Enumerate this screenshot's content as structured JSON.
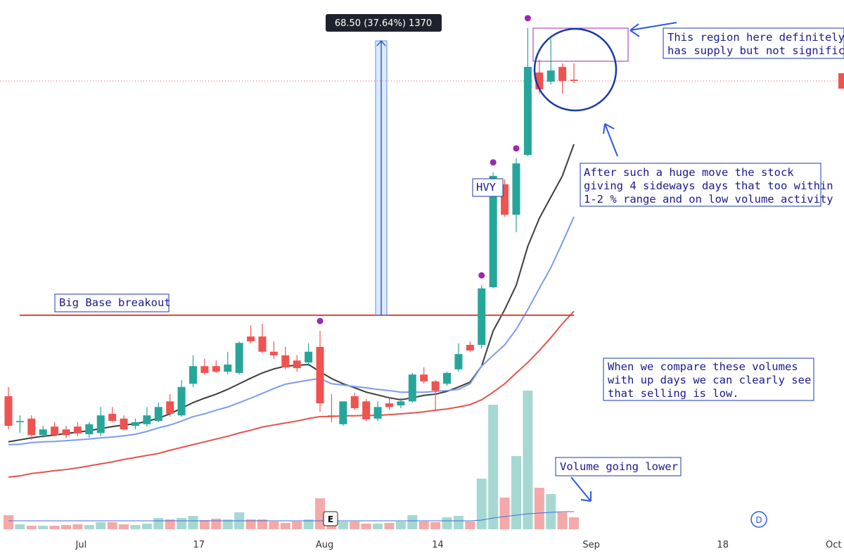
{
  "chart_data": {
    "type": "candlestick",
    "xlim": [
      -0.73,
      72.4
    ],
    "xticks": [
      {
        "value": 6.3,
        "label": "Jul"
      },
      {
        "value": 16.5,
        "label": "17"
      },
      {
        "value": 27.4,
        "label": "Aug"
      },
      {
        "value": 37.2,
        "label": "14"
      },
      {
        "value": 50.5,
        "label": "Sep"
      },
      {
        "value": 61.9,
        "label": "18"
      },
      {
        "value": 71.5,
        "label": "Oct"
      }
    ],
    "ylim": [
      121.9,
      260.7
    ],
    "y2lim": [
      0,
      100
    ],
    "up_color": "#26a69a",
    "down_color": "#ef5350",
    "volume_up_color": "#a6d8d3",
    "volume_down_color": "#f4a9a8",
    "candles": {
      "open": [
        161.8,
        155.3,
        156.2,
        152.1,
        154.2,
        153.5,
        154.2,
        152.3,
        152.6,
        157.4,
        156.2,
        154.4,
        154.8,
        155.6,
        160.5,
        157.0,
        164.9,
        169.3,
        169.3,
        167.9,
        167.6,
        176.7,
        176.7,
        172.9,
        172.0,
        170.7,
        170.2,
        174.1,
        157.0,
        154.8,
        161.8,
        160.5,
        156.2,
        160.0,
        159.5,
        160.5,
        167.2,
        165.5,
        164.9,
        168.5,
        174.6,
        174.6,
        189.0,
        214.7,
        207.1,
        222.0,
        242.6,
        240.3,
        244.0,
        240.8
      ],
      "high": [
        164.1,
        157.0,
        157.0,
        154.4,
        155.3,
        154.4,
        155.3,
        155.3,
        159.1,
        159.1,
        157.0,
        156.2,
        159.1,
        160.2,
        162.3,
        165.8,
        172.0,
        171.1,
        170.7,
        172.9,
        175.5,
        179.5,
        179.9,
        175.5,
        174.1,
        172.0,
        175.0,
        178.1,
        162.3,
        160.5,
        162.7,
        161.1,
        160.5,
        161.4,
        161.4,
        167.6,
        169.0,
        165.8,
        167.9,
        175.0,
        175.5,
        189.5,
        217.7,
        215.9,
        221.2,
        253.7,
        245.8,
        251.0,
        244.9,
        244.9
      ],
      "low": [
        153.5,
        152.6,
        150.9,
        151.4,
        151.8,
        151.4,
        151.8,
        151.4,
        151.8,
        155.3,
        153.2,
        153.5,
        154.2,
        155.3,
        156.7,
        156.7,
        164.1,
        167.2,
        167.6,
        167.2,
        167.2,
        175.0,
        172.5,
        171.1,
        168.5,
        167.9,
        169.3,
        157.9,
        155.3,
        154.4,
        158.4,
        155.6,
        155.6,
        158.4,
        158.8,
        160.2,
        164.9,
        158.4,
        164.4,
        167.9,
        172.9,
        173.7,
        188.7,
        206.6,
        202.7,
        221.7,
        237.3,
        239.6,
        237.3,
        239.9
      ],
      "close": [
        154.4,
        155.6,
        152.1,
        153.5,
        152.1,
        152.1,
        152.5,
        154.8,
        157.0,
        155.6,
        153.5,
        155.3,
        157.0,
        159.1,
        157.4,
        164.1,
        169.3,
        167.6,
        167.9,
        169.7,
        175.1,
        175.5,
        172.9,
        172.0,
        169.0,
        168.8,
        172.9,
        160.0,
        156.7,
        160.5,
        158.8,
        156.0,
        159.1,
        159.1,
        160.5,
        167.2,
        165.5,
        163.2,
        167.6,
        172.3,
        173.2,
        188.7,
        216.8,
        207.1,
        219.9,
        244.0,
        238.4,
        243.1,
        240.5,
        240.5
      ],
      "volume": [
        10,
        3.5,
        2.5,
        2.5,
        2.5,
        3,
        3.5,
        3,
        5,
        5,
        3.5,
        3,
        4,
        8,
        7,
        8,
        9.5,
        6.5,
        7.5,
        7,
        12,
        7,
        7,
        5.5,
        4.5,
        5.5,
        7,
        22,
        5,
        5.5,
        5.5,
        4,
        4,
        4.5,
        5.5,
        10,
        5.5,
        5,
        8.5,
        9.5,
        5.5,
        36,
        88.5,
        22.5,
        52,
        98.5,
        29.5,
        25,
        12,
        8.5
      ]
    },
    "averages": [
      {
        "color": "#3d3d3d",
        "values": [
          150.4,
          150.9,
          151.4,
          151.8,
          152.1,
          152.5,
          152.8,
          153.2,
          153.7,
          154.2,
          154.6,
          154.9,
          155.5,
          156.3,
          157.4,
          158.8,
          160.2,
          161.3,
          162.3,
          163.5,
          164.9,
          166.3,
          167.6,
          168.6,
          169.3,
          169.5,
          169.7,
          167.9,
          166.2,
          164.9,
          163.9,
          162.8,
          162.1,
          161.4,
          160.9,
          161.4,
          162.0,
          162.3,
          163.0,
          164.1,
          165.3,
          169.3,
          178.1,
          183.4,
          189.5,
          199.2,
          206.2,
          211.5,
          216.8,
          224.7
        ]
      },
      {
        "color": "#7a9cf0",
        "values": [
          149.7,
          149.8,
          150.2,
          150.4,
          150.5,
          150.7,
          150.9,
          151.1,
          151.4,
          151.6,
          151.9,
          152.3,
          153.0,
          153.9,
          154.6,
          155.6,
          156.7,
          157.4,
          158.3,
          159.1,
          160.2,
          161.3,
          162.5,
          163.7,
          164.8,
          165.3,
          165.8,
          166.2,
          164.9,
          164.6,
          164.2,
          163.9,
          163.5,
          163.2,
          162.8,
          162.8,
          162.8,
          163.0,
          163.2,
          163.5,
          164.9,
          169.3,
          172.0,
          174.6,
          178.5,
          183.4,
          188.7,
          193.9,
          200.1,
          206.6
        ]
      },
      {
        "color": "#e3534c",
        "values": [
          141.6,
          141.9,
          142.5,
          142.8,
          143.2,
          143.5,
          143.9,
          144.4,
          144.9,
          145.4,
          146.0,
          146.5,
          147.0,
          147.5,
          148.3,
          149.0,
          149.7,
          150.4,
          151.1,
          151.8,
          152.6,
          153.3,
          154.1,
          154.6,
          155.1,
          155.6,
          156.2,
          156.7,
          156.7,
          156.9,
          156.9,
          157.0,
          157.0,
          157.2,
          157.4,
          157.6,
          157.9,
          158.3,
          158.6,
          159.1,
          159.7,
          160.9,
          162.8,
          164.9,
          167.6,
          170.2,
          173.2,
          176.4,
          179.9,
          183.0
        ]
      }
    ],
    "volume_average": {
      "color": "#3f6fd8",
      "values": [
        6,
        6,
        6,
        6,
        6,
        6,
        6,
        6,
        6,
        6,
        6,
        6,
        6,
        6,
        6,
        6,
        6,
        6,
        6,
        6,
        6,
        6,
        6,
        6,
        6,
        6,
        6,
        6,
        6,
        6,
        6,
        6,
        6,
        6,
        6,
        6,
        6,
        6,
        6,
        6,
        6,
        6.5,
        8,
        9,
        10,
        11,
        11.5,
        12,
        12.5,
        12.5
      ]
    },
    "marker_color": "#9c27b0",
    "markers": [
      27,
      41,
      42,
      44,
      45
    ],
    "breakout": {
      "value": 182.0,
      "label": "Big Base breakout"
    },
    "measure": {
      "x": 32.3,
      "from": 182.0,
      "to": 250.5,
      "label": "68.50 (37.64%) 1370"
    },
    "hvy": "HVY",
    "earnings": "E",
    "dividend": "D",
    "notes": [
      {
        "lines": [
          "This region here definitely",
          "has supply but not significant"
        ]
      },
      {
        "lines": [
          "After such a huge move the stock",
          "giving 4 sideways days that too within",
          "1-2 % range and on low volume activity"
        ]
      },
      {
        "lines": [
          "When we compare these volumes",
          "with up days we can clearly see",
          "that selling is low."
        ]
      },
      {
        "lines": [
          "Volume going lower"
        ]
      }
    ]
  }
}
